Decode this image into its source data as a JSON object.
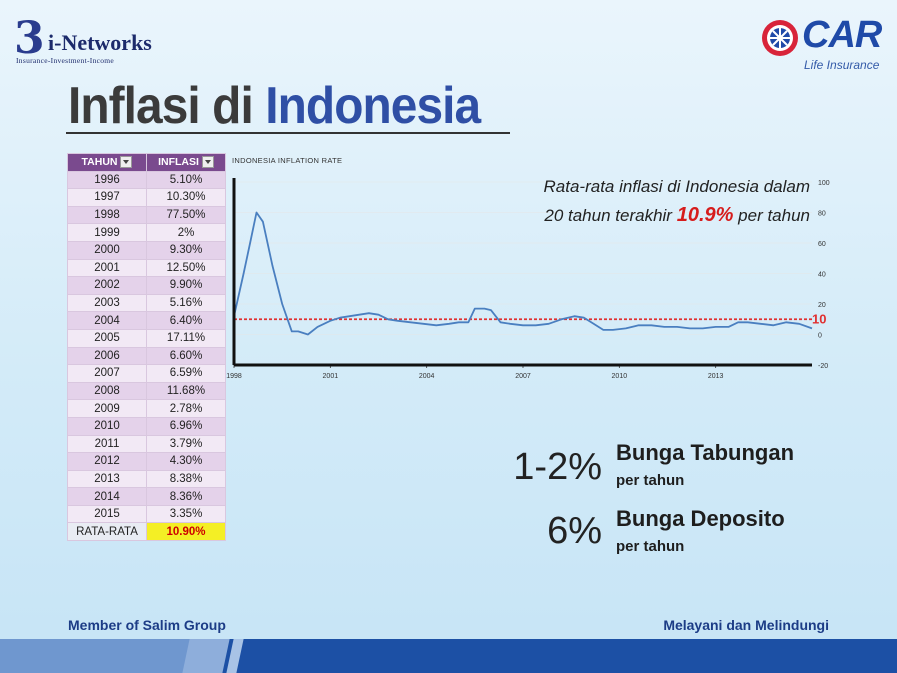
{
  "logos": {
    "left_brand": "i-Networks",
    "left_brand_mark": "3",
    "left_tagline": "Insurance-Investment-Income",
    "right_brand": "CAR",
    "right_sub": "Life Insurance"
  },
  "title": {
    "part1": "Inflasi di",
    "part2": "Indonesia"
  },
  "table": {
    "headers": [
      "TAHUN",
      "INFLASI"
    ],
    "rows": [
      [
        "1996",
        "5.10%"
      ],
      [
        "1997",
        "10.30%"
      ],
      [
        "1998",
        "77.50%"
      ],
      [
        "1999",
        "2%"
      ],
      [
        "2000",
        "9.30%"
      ],
      [
        "2001",
        "12.50%"
      ],
      [
        "2002",
        "9.90%"
      ],
      [
        "2003",
        "5.16%"
      ],
      [
        "2004",
        "6.40%"
      ],
      [
        "2005",
        "17.11%"
      ],
      [
        "2006",
        "6.60%"
      ],
      [
        "2007",
        "6.59%"
      ],
      [
        "2008",
        "11.68%"
      ],
      [
        "2009",
        "2.78%"
      ],
      [
        "2010",
        "6.96%"
      ],
      [
        "2011",
        "3.79%"
      ],
      [
        "2012",
        "4.30%"
      ],
      [
        "2013",
        "8.38%"
      ],
      [
        "2014",
        "8.36%"
      ],
      [
        "2015",
        "3.35%"
      ]
    ],
    "average_label": "RATA-RATA",
    "average_value": "10.90%"
  },
  "annotation": {
    "line1": "Rata-rata inflasi di Indonesia dalam",
    "line2_pre": "20 tahun terakhir",
    "line2_value": "10.9%",
    "line2_post": "per tahun"
  },
  "rates": [
    {
      "value": "1-2%",
      "name": "Bunga Tabungan",
      "unit": "per tahun"
    },
    {
      "value": "6%",
      "name": "Bunga Deposito",
      "unit": "per tahun"
    }
  ],
  "footer": {
    "left": "Member of Salim Group",
    "right": "Melayani dan Melindungi"
  },
  "colors": {
    "line": "#4a7fc0",
    "average_line": "#e03030",
    "header": "#7a4a8e",
    "highlight": "#f4ef25"
  },
  "chart_data": {
    "type": "line",
    "title": "INDONESIA INFLATION RATE",
    "x_ticks": [
      "1998",
      "2001",
      "2004",
      "2007",
      "2010",
      "2013"
    ],
    "y_ticks": [
      100,
      80,
      60,
      40,
      20,
      0,
      -20
    ],
    "xlim": [
      1998,
      2016
    ],
    "ylim": [
      -20,
      100
    ],
    "reference_line": {
      "value": 10,
      "label": "10"
    },
    "x": [
      1998.0,
      1998.3,
      1998.5,
      1998.7,
      1998.9,
      1999.2,
      1999.5,
      1999.8,
      2000.0,
      2000.3,
      2000.6,
      2001.0,
      2001.3,
      2001.6,
      2001.9,
      2002.2,
      2002.5,
      2002.8,
      2003.1,
      2003.5,
      2003.9,
      2004.3,
      2004.7,
      2005.0,
      2005.3,
      2005.5,
      2005.8,
      2006.0,
      2006.3,
      2006.6,
      2007.0,
      2007.4,
      2007.8,
      2008.2,
      2008.6,
      2008.9,
      2009.2,
      2009.5,
      2009.8,
      2010.2,
      2010.6,
      2011.0,
      2011.4,
      2011.8,
      2012.2,
      2012.6,
      2013.0,
      2013.4,
      2013.7,
      2014.0,
      2014.4,
      2014.8,
      2015.2,
      2015.6,
      2016.0
    ],
    "y": [
      12,
      40,
      60,
      80,
      74,
      45,
      20,
      2,
      2,
      0,
      5,
      9,
      11,
      12,
      13,
      14,
      13,
      10,
      9,
      8,
      7,
      6,
      7,
      8,
      8,
      17,
      17,
      16,
      8,
      7,
      6,
      6,
      7,
      10,
      12,
      11,
      7,
      3,
      3,
      4,
      6,
      6,
      5,
      5,
      4,
      4,
      5,
      5,
      8,
      8,
      7,
      6,
      8,
      7,
      4
    ],
    "series": [
      {
        "name": "",
        "values": "see y"
      }
    ]
  }
}
